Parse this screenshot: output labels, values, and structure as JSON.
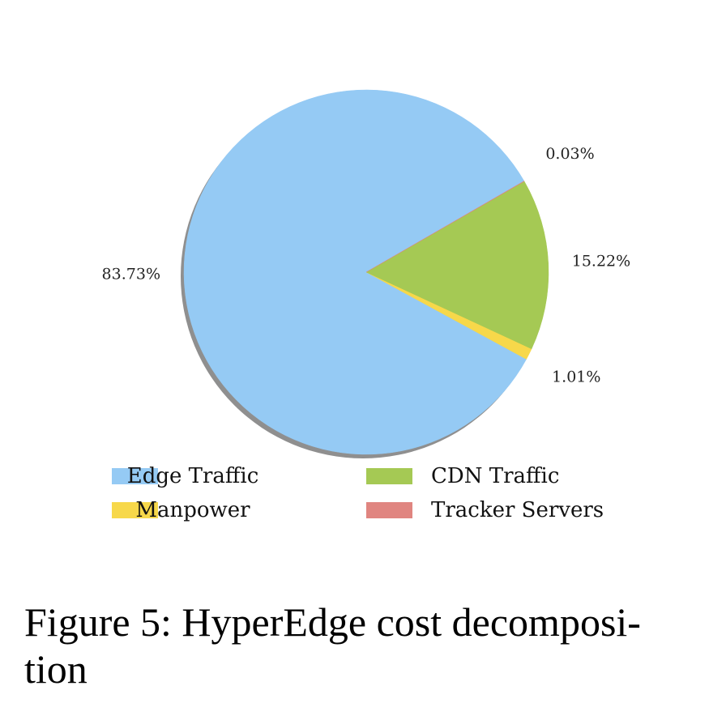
{
  "chart_data": {
    "type": "pie",
    "categories": [
      "Edge Traffic",
      "Manpower",
      "CDN Traffic",
      "Tracker Servers"
    ],
    "values": [
      83.73,
      1.01,
      15.22,
      0.03
    ],
    "value_labels": [
      "83.73%",
      "1.01%",
      "15.22%",
      "0.03%"
    ],
    "colors": [
      "#95caf4",
      "#f7d84a",
      "#a5c954",
      "#e08580"
    ],
    "shadow": true,
    "legend": "bottom",
    "caption": [
      "Figure 5: HyperEdge cost decomposi-",
      "tion"
    ]
  }
}
